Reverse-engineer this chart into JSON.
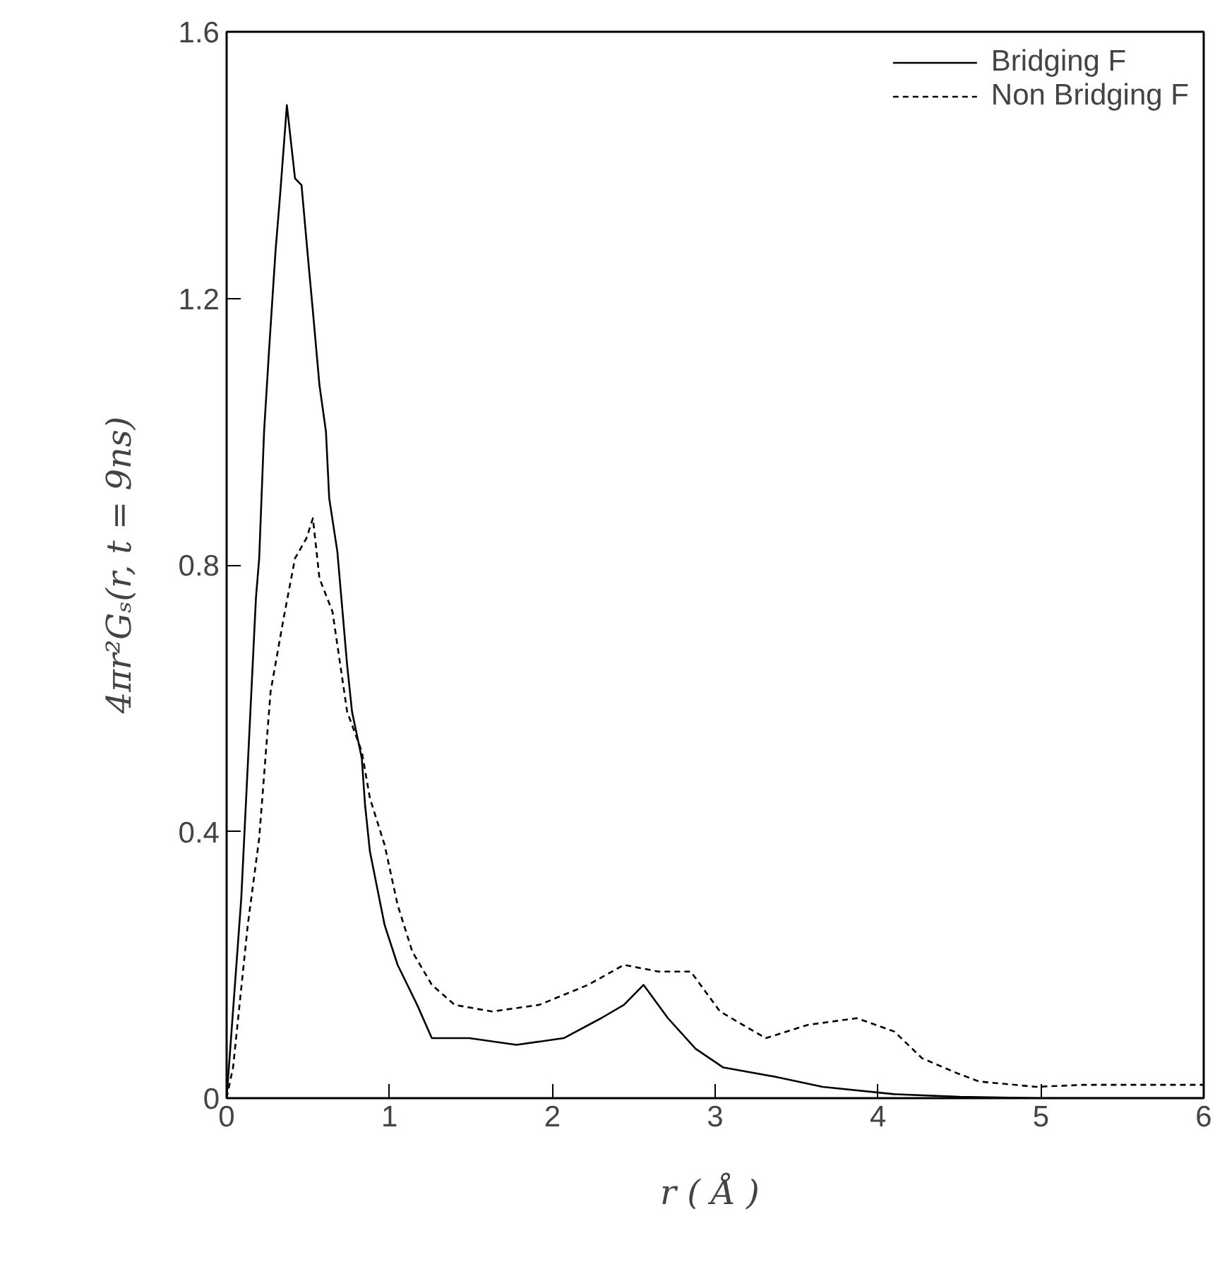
{
  "chart_data": {
    "type": "line",
    "xlabel": "r  ( Å )",
    "ylabel": "4πr²Gₛ(r, t = 9ns)",
    "xlim": [
      0,
      6
    ],
    "ylim": [
      0,
      1.6
    ],
    "xticks": [
      0,
      1,
      2,
      3,
      4,
      5,
      6
    ],
    "yticks": [
      0,
      0.4,
      0.8,
      1.2,
      1.6
    ],
    "grid": false,
    "legend": "top right",
    "marker": "none",
    "series": [
      {
        "name": "Bridging F",
        "color": "#000000",
        "line_style": "solid",
        "x": [
          0,
          0.09,
          0.18,
          0.2,
          0.23,
          0.26,
          0.3,
          0.33,
          0.37,
          0.42,
          0.46,
          0.5,
          0.53,
          0.57,
          0.61,
          0.63,
          0.68,
          0.74,
          0.77,
          0.83,
          0.85,
          0.88,
          0.97,
          1.05,
          1.17,
          1.26,
          1.49,
          1.78,
          2.07,
          2.3,
          2.44,
          2.56,
          2.71,
          2.88,
          3.05,
          3.37,
          3.66,
          4.1,
          4.5,
          5,
          5.5,
          6
        ],
        "values": [
          0,
          0.3,
          0.75,
          0.81,
          1.0,
          1.12,
          1.27,
          1.36,
          1.49,
          1.38,
          1.37,
          1.26,
          1.18,
          1.07,
          1.0,
          0.9,
          0.82,
          0.65,
          0.58,
          0.51,
          0.44,
          0.37,
          0.26,
          0.2,
          0.14,
          0.09,
          0.09,
          0.08,
          0.09,
          0.12,
          0.14,
          0.17,
          0.12,
          0.074,
          0.046,
          0.032,
          0.017,
          0.006,
          0.002,
          0,
          0,
          0
        ]
      },
      {
        "name": "Non Bridging F",
        "color": "#000000",
        "line_style": "dashed",
        "x": [
          0,
          0.04,
          0.13,
          0.2,
          0.27,
          0.35,
          0.42,
          0.49,
          0.53,
          0.57,
          0.65,
          0.74,
          0.83,
          0.88,
          0.97,
          1.05,
          1.14,
          1.26,
          1.4,
          1.63,
          1.92,
          2.22,
          2.44,
          2.65,
          2.85,
          3.03,
          3.31,
          3.57,
          3.87,
          4.1,
          4.27,
          4.48,
          4.62,
          4.97,
          5.26,
          5.84,
          6
        ],
        "values": [
          0,
          0.047,
          0.26,
          0.39,
          0.61,
          0.72,
          0.81,
          0.84,
          0.87,
          0.78,
          0.73,
          0.58,
          0.52,
          0.45,
          0.38,
          0.29,
          0.22,
          0.17,
          0.14,
          0.13,
          0.14,
          0.17,
          0.2,
          0.19,
          0.19,
          0.13,
          0.09,
          0.11,
          0.12,
          0.1,
          0.06,
          0.038,
          0.025,
          0.017,
          0.02,
          0.02,
          0.02
        ]
      }
    ]
  }
}
